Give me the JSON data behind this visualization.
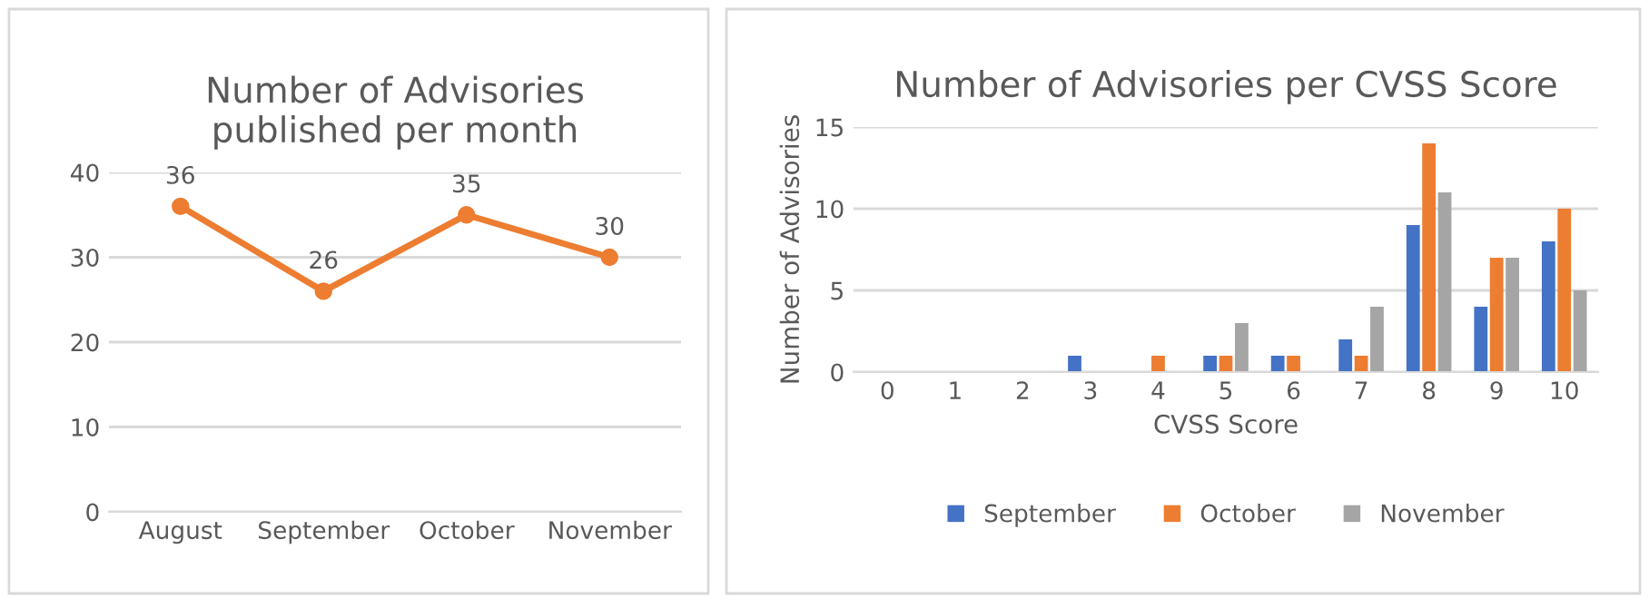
{
  "chart_data": [
    {
      "type": "line",
      "title": "Number of Advisories\npublished per month",
      "categories": [
        "August",
        "September",
        "October",
        "November"
      ],
      "series": [
        {
          "color": "#ed7d31",
          "values": [
            36,
            26,
            35,
            30
          ]
        }
      ],
      "ylim": [
        0,
        40
      ],
      "yticks": [
        0,
        10,
        20,
        30,
        40
      ],
      "grid": "y",
      "marker": "circle",
      "line_style": "solid",
      "data_labels": true
    },
    {
      "type": "bar",
      "title": "Number of Advisories per CVSS Score",
      "xlabel": "CVSS Score",
      "ylabel": "Number of Advisories",
      "categories": [
        "0",
        "1",
        "2",
        "3",
        "4",
        "5",
        "6",
        "7",
        "8",
        "9",
        "10"
      ],
      "series": [
        {
          "name": "September",
          "color": "#4472c4",
          "values": [
            0,
            0,
            0,
            1,
            0,
            1,
            1,
            2,
            9,
            4,
            8
          ]
        },
        {
          "name": "October",
          "color": "#ed7d31",
          "values": [
            0,
            0,
            0,
            0,
            1,
            1,
            1,
            1,
            14,
            7,
            10
          ]
        },
        {
          "name": "November",
          "color": "#a5a5a5",
          "values": [
            0,
            0,
            0,
            0,
            0,
            3,
            0,
            4,
            11,
            7,
            5
          ]
        }
      ],
      "ylim": [
        0,
        15
      ],
      "yticks": [
        0,
        5,
        10,
        15
      ],
      "grid": "y",
      "legend": "bottom"
    }
  ]
}
